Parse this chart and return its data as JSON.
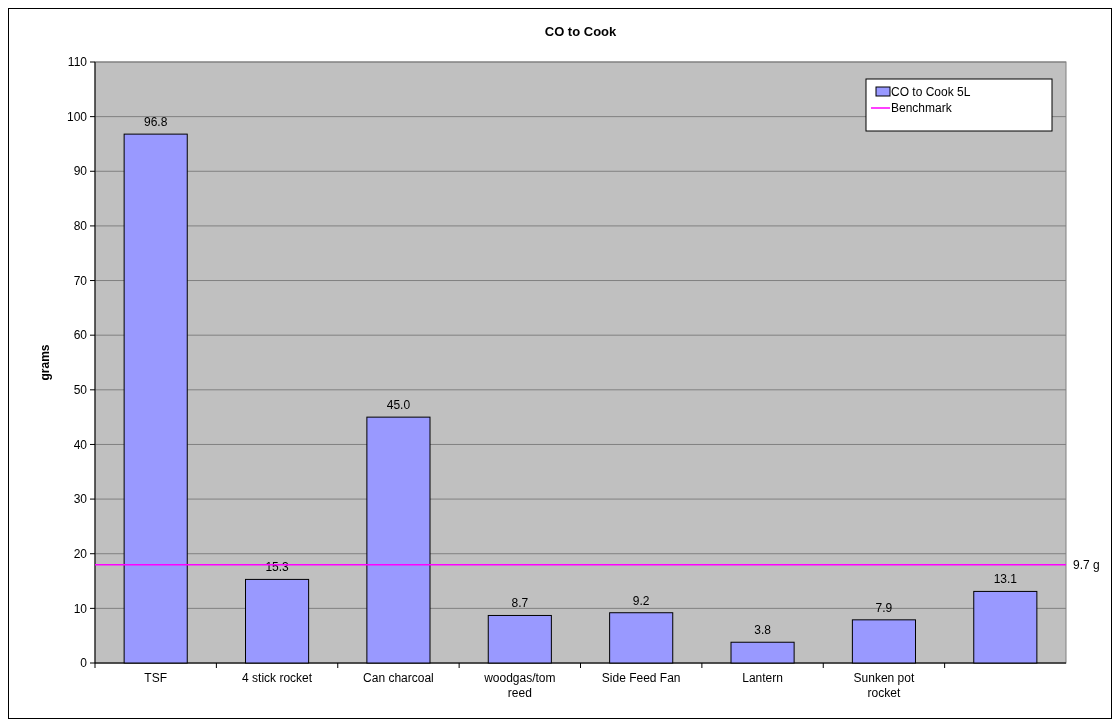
{
  "chart_data": {
    "type": "bar",
    "title": "CO to Cook",
    "ylabel": "grams",
    "categories": [
      "TSF",
      "4 stick rocket",
      "Can charcoal",
      "woodgas/tom reed",
      "Side Feed Fan",
      "Lantern",
      "Sunken pot rocket",
      null
    ],
    "series": [
      {
        "name": "CO to Cook 5L",
        "color": "#9999ff",
        "values": [
          96.8,
          15.3,
          45.0,
          8.7,
          9.2,
          3.8,
          7.9,
          13.1
        ],
        "value_labels": [
          "96.8",
          "15.3",
          "45.0",
          "8.7",
          "9.2",
          "3.8",
          "7.9",
          "13.1"
        ]
      }
    ],
    "ylim": [
      0,
      110
    ],
    "yticks": [
      0,
      10,
      20,
      30,
      40,
      50,
      60,
      70,
      80,
      90,
      100,
      110
    ],
    "grid": "y",
    "legend": "top right",
    "ref_lines": [
      {
        "axis": "y",
        "value": 18,
        "label": "Benchmark",
        "color": "#ff00ff"
      }
    ],
    "annotations": [
      "9.7 g"
    ]
  }
}
